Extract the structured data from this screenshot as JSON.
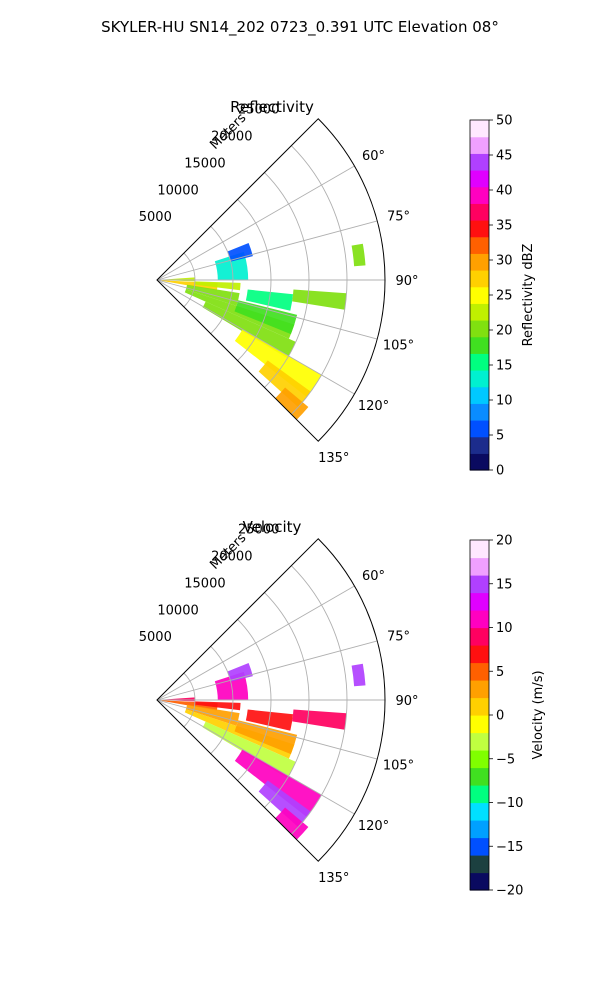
{
  "figure": {
    "suptitle": "SKYLER-HU  SN14_202  0723_0.391 UTC Elevation 08°"
  },
  "chart_data": [
    {
      "type": "heatmap",
      "subtype": "polar-sector (radar PPI)",
      "title": "Reflectivity",
      "radial_label": "Meters",
      "theta_range_deg": [
        45,
        135
      ],
      "r_max_m": 30000,
      "radial_ticks": [
        "5000",
        "10000",
        "15000",
        "20000",
        "25000"
      ],
      "angular_ticks": [
        "60°",
        "75°",
        "90°",
        "105°",
        "120°",
        "135°"
      ],
      "grid": true,
      "colorbar": {
        "label": "Reflectivity dBZ",
        "min": 0,
        "max": 50,
        "ticks": [
          "0",
          "5",
          "10",
          "15",
          "20",
          "25",
          "30",
          "35",
          "40",
          "45",
          "50"
        ],
        "colors": [
          "#0a0a60",
          "#1c2c8c",
          "#0050ff",
          "#0a8cff",
          "#00c8ff",
          "#00f0d0",
          "#00ff80",
          "#40e020",
          "#80e010",
          "#c0f000",
          "#ffff00",
          "#ffd000",
          "#ffa000",
          "#ff6000",
          "#ff1010",
          "#ff0060",
          "#ff00c0",
          "#e000ff",
          "#b040ff",
          "#f0a0ff",
          "#ffe8ff"
        ]
      },
      "echoes": [
        {
          "theta": [
            93,
            100
          ],
          "r": [
            500,
            8000
          ],
          "value": 27
        },
        {
          "theta": [
            86,
            92
          ],
          "r": [
            500,
            5000
          ],
          "value": 23
        },
        {
          "theta": [
            92,
            97
          ],
          "r": [
            5000,
            11000
          ],
          "value": 22
        },
        {
          "theta": [
            99,
            108
          ],
          "r": [
            4000,
            11000
          ],
          "value": 21
        },
        {
          "theta": [
            108,
            114
          ],
          "r": [
            4000,
            19000
          ],
          "value": 21
        },
        {
          "theta": [
            114,
            121
          ],
          "r": [
            7000,
            20000
          ],
          "value": 20
        },
        {
          "theta": [
            104,
            112
          ],
          "r": [
            11000,
            19000
          ],
          "value": 17
        },
        {
          "theta": [
            96,
            103
          ],
          "r": [
            12000,
            18000
          ],
          "value": 16
        },
        {
          "theta": [
            94,
            99
          ],
          "r": [
            18000,
            25000
          ],
          "value": 20
        },
        {
          "theta": [
            120,
            128
          ],
          "r": [
            13000,
            25000
          ],
          "value": 24
        },
        {
          "theta": [
            126,
            132
          ],
          "r": [
            18000,
            25000
          ],
          "value": 27
        },
        {
          "theta": [
            130,
            135
          ],
          "r": [
            22000,
            26000
          ],
          "value": 30
        },
        {
          "theta": [
            72,
            90
          ],
          "r": [
            8000,
            12000
          ],
          "value": 12
        },
        {
          "theta": [
            68,
            76
          ],
          "r": [
            10000,
            13000
          ],
          "value": 6
        },
        {
          "theta": [
            80,
            86
          ],
          "r": [
            26000,
            27500
          ],
          "value": 20
        }
      ]
    },
    {
      "type": "heatmap",
      "subtype": "polar-sector (radar PPI)",
      "title": "Velocity",
      "radial_label": "Meters",
      "theta_range_deg": [
        45,
        135
      ],
      "r_max_m": 30000,
      "radial_ticks": [
        "5000",
        "10000",
        "15000",
        "20000",
        "25000"
      ],
      "angular_ticks": [
        "60°",
        "75°",
        "90°",
        "105°",
        "120°",
        "135°"
      ],
      "grid": true,
      "colorbar": {
        "label": "Velocity (m/s)",
        "min": -20,
        "max": 20,
        "ticks": [
          "−20",
          "−15",
          "−10",
          "−5",
          "0",
          "5",
          "10",
          "15",
          "20"
        ],
        "colors": [
          "#0a0a60",
          "#1c4040",
          "#0050ff",
          "#00a0ff",
          "#00e0ff",
          "#00ff80",
          "#40e020",
          "#80ff00",
          "#c0ff40",
          "#ffff00",
          "#ffd000",
          "#ffa000",
          "#ff6000",
          "#ff1010",
          "#ff0060",
          "#ff00c0",
          "#e000ff",
          "#b040ff",
          "#f0a0ff",
          "#ffe8ff"
        ]
      },
      "echoes": [
        {
          "theta": [
            93,
            100
          ],
          "r": [
            500,
            8000
          ],
          "value": 5
        },
        {
          "theta": [
            86,
            92
          ],
          "r": [
            500,
            5000
          ],
          "value": 9
        },
        {
          "theta": [
            92,
            97
          ],
          "r": [
            5000,
            11000
          ],
          "value": 6
        },
        {
          "theta": [
            99,
            108
          ],
          "r": [
            4000,
            11000
          ],
          "value": 2
        },
        {
          "theta": [
            108,
            114
          ],
          "r": [
            4000,
            19000
          ],
          "value": 1
        },
        {
          "theta": [
            114,
            121
          ],
          "r": [
            7000,
            20000
          ],
          "value": -4
        },
        {
          "theta": [
            104,
            112
          ],
          "r": [
            11000,
            19000
          ],
          "value": 2
        },
        {
          "theta": [
            96,
            103
          ],
          "r": [
            12000,
            18000
          ],
          "value": 6
        },
        {
          "theta": [
            94,
            99
          ],
          "r": [
            18000,
            25000
          ],
          "value": 9
        },
        {
          "theta": [
            120,
            128
          ],
          "r": [
            13000,
            25000
          ],
          "value": 10
        },
        {
          "theta": [
            126,
            132
          ],
          "r": [
            18000,
            25000
          ],
          "value": 14
        },
        {
          "theta": [
            130,
            135
          ],
          "r": [
            22000,
            26000
          ],
          "value": 10
        },
        {
          "theta": [
            72,
            90
          ],
          "r": [
            8000,
            12000
          ],
          "value": 10
        },
        {
          "theta": [
            68,
            76
          ],
          "r": [
            10000,
            13000
          ],
          "value": 14
        },
        {
          "theta": [
            80,
            86
          ],
          "r": [
            26000,
            27500
          ],
          "value": 15
        }
      ]
    }
  ]
}
